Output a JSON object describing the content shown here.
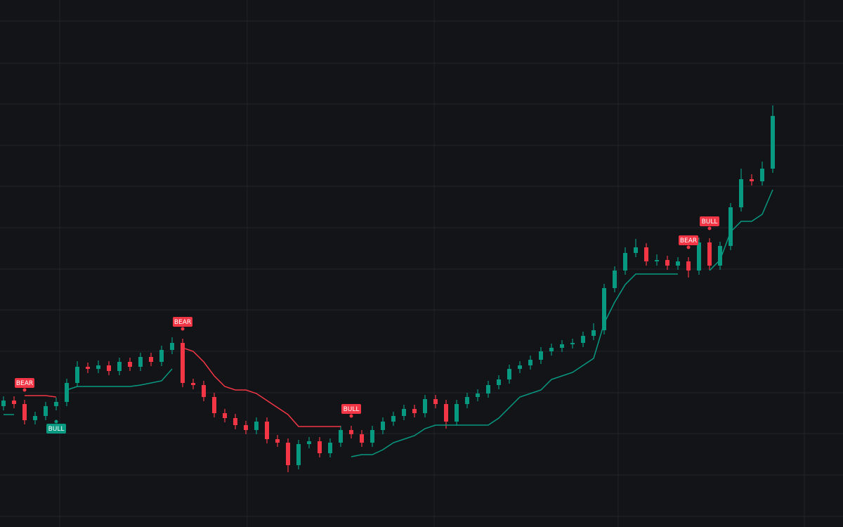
{
  "chart_data": {
    "type": "candlestick",
    "xlim": [
      -0.333,
      79.667
    ],
    "ylim": [
      0,
      750
    ],
    "xticks": [
      5.33,
      23.13,
      40.87,
      58.33,
      76
    ],
    "yticks": [
      720,
      660,
      602,
      543,
      485,
      426,
      367,
      309,
      250,
      191,
      133,
      74,
      15
    ],
    "grid": true,
    "up_color": "#089981",
    "down_color": "#f23645",
    "open": [
      172,
      180,
      175,
      152,
      158,
      172,
      178,
      205,
      228,
      225,
      230,
      222,
      235,
      228,
      242,
      235,
      252,
      262,
      205,
      202,
      185,
      162,
      155,
      145,
      138,
      150,
      125,
      120,
      88,
      118,
      122,
      105,
      120,
      138,
      132,
      120,
      138,
      150,
      158,
      168,
      162,
      182,
      175,
      150,
      175,
      185,
      190,
      202,
      210,
      225,
      230,
      238,
      250,
      255,
      260,
      262,
      272,
      280,
      340,
      365,
      390,
      398,
      378,
      380,
      372,
      378,
      365,
      405,
      372,
      400,
      455,
      495,
      492,
      510
    ],
    "high": [
      186,
      186,
      181,
      164,
      178,
      184,
      211,
      236,
      234,
      237,
      236,
      241,
      241,
      248,
      248,
      258,
      270,
      268,
      211,
      208,
      191,
      168,
      161,
      151,
      156,
      156,
      131,
      126,
      124,
      128,
      128,
      126,
      144,
      144,
      138,
      144,
      156,
      164,
      174,
      174,
      188,
      188,
      181,
      181,
      191,
      196,
      208,
      216,
      231,
      236,
      244,
      256,
      261,
      266,
      268,
      278,
      290,
      346,
      371,
      398,
      410,
      404,
      388,
      386,
      384,
      384,
      412,
      411,
      406,
      461,
      510,
      502,
      520,
      600
    ],
    "low": [
      166,
      169,
      146,
      146,
      152,
      166,
      172,
      199,
      219,
      219,
      216,
      216,
      222,
      222,
      229,
      229,
      246,
      199,
      196,
      179,
      156,
      149,
      139,
      132,
      132,
      119,
      114,
      78,
      82,
      112,
      99,
      99,
      114,
      126,
      114,
      114,
      132,
      144,
      152,
      156,
      156,
      169,
      140,
      144,
      169,
      179,
      184,
      196,
      204,
      219,
      224,
      232,
      244,
      249,
      254,
      256,
      266,
      274,
      334,
      359,
      384,
      372,
      372,
      366,
      366,
      355,
      359,
      366,
      366,
      394,
      449,
      486,
      486,
      504
    ],
    "close": [
      180,
      175,
      152,
      158,
      172,
      178,
      205,
      228,
      225,
      230,
      222,
      235,
      228,
      242,
      235,
      252,
      262,
      205,
      202,
      185,
      162,
      155,
      145,
      138,
      150,
      125,
      120,
      88,
      118,
      122,
      105,
      120,
      138,
      132,
      120,
      138,
      150,
      158,
      168,
      162,
      182,
      175,
      150,
      175,
      185,
      190,
      202,
      210,
      225,
      230,
      238,
      250,
      255,
      260,
      262,
      272,
      280,
      340,
      365,
      390,
      398,
      378,
      380,
      372,
      378,
      365,
      405,
      372,
      400,
      455,
      495,
      492,
      510,
      585
    ],
    "series": [
      {
        "color": "#089981",
        "values": [
          160,
          160,
          null,
          null,
          null,
          null,
          195,
          200,
          200,
          200,
          200,
          200,
          200,
          202,
          205,
          208,
          225,
          null,
          null,
          null,
          null,
          null,
          null,
          null,
          null,
          null,
          null,
          null,
          null,
          null,
          null,
          null,
          null,
          100,
          103,
          103,
          110,
          120,
          125,
          130,
          140,
          145,
          145,
          145,
          145,
          145,
          145,
          155,
          170,
          185,
          190,
          195,
          210,
          215,
          220,
          230,
          240,
          290,
          320,
          345,
          360,
          360,
          360,
          360,
          360,
          null,
          null,
          365,
          380,
          420,
          435,
          435,
          445,
          480
        ]
      },
      {
        "color": "#f23645",
        "values": [
          null,
          null,
          187,
          187,
          187,
          185,
          null,
          null,
          null,
          null,
          null,
          null,
          null,
          null,
          null,
          null,
          null,
          255,
          250,
          235,
          215,
          200,
          195,
          195,
          190,
          180,
          170,
          160,
          143,
          143,
          143,
          143,
          143,
          null,
          null,
          null,
          null,
          null,
          null,
          null,
          null,
          null,
          null,
          null,
          null,
          null,
          null,
          null,
          null,
          null,
          null,
          null,
          null,
          null,
          null,
          null,
          null,
          null,
          null,
          null,
          null,
          null,
          null,
          null,
          null,
          410,
          410,
          null,
          null,
          null,
          null,
          null,
          null,
          null
        ]
      }
    ],
    "signals": [
      {
        "label": "BEAR",
        "index": 2
      },
      {
        "label": "BULL",
        "index": 5
      },
      {
        "label": "BEAR",
        "index": 17
      },
      {
        "label": "BULL",
        "index": 33
      },
      {
        "label": "BEAR",
        "index": 65
      },
      {
        "label": "BULL",
        "index": 67
      }
    ]
  }
}
